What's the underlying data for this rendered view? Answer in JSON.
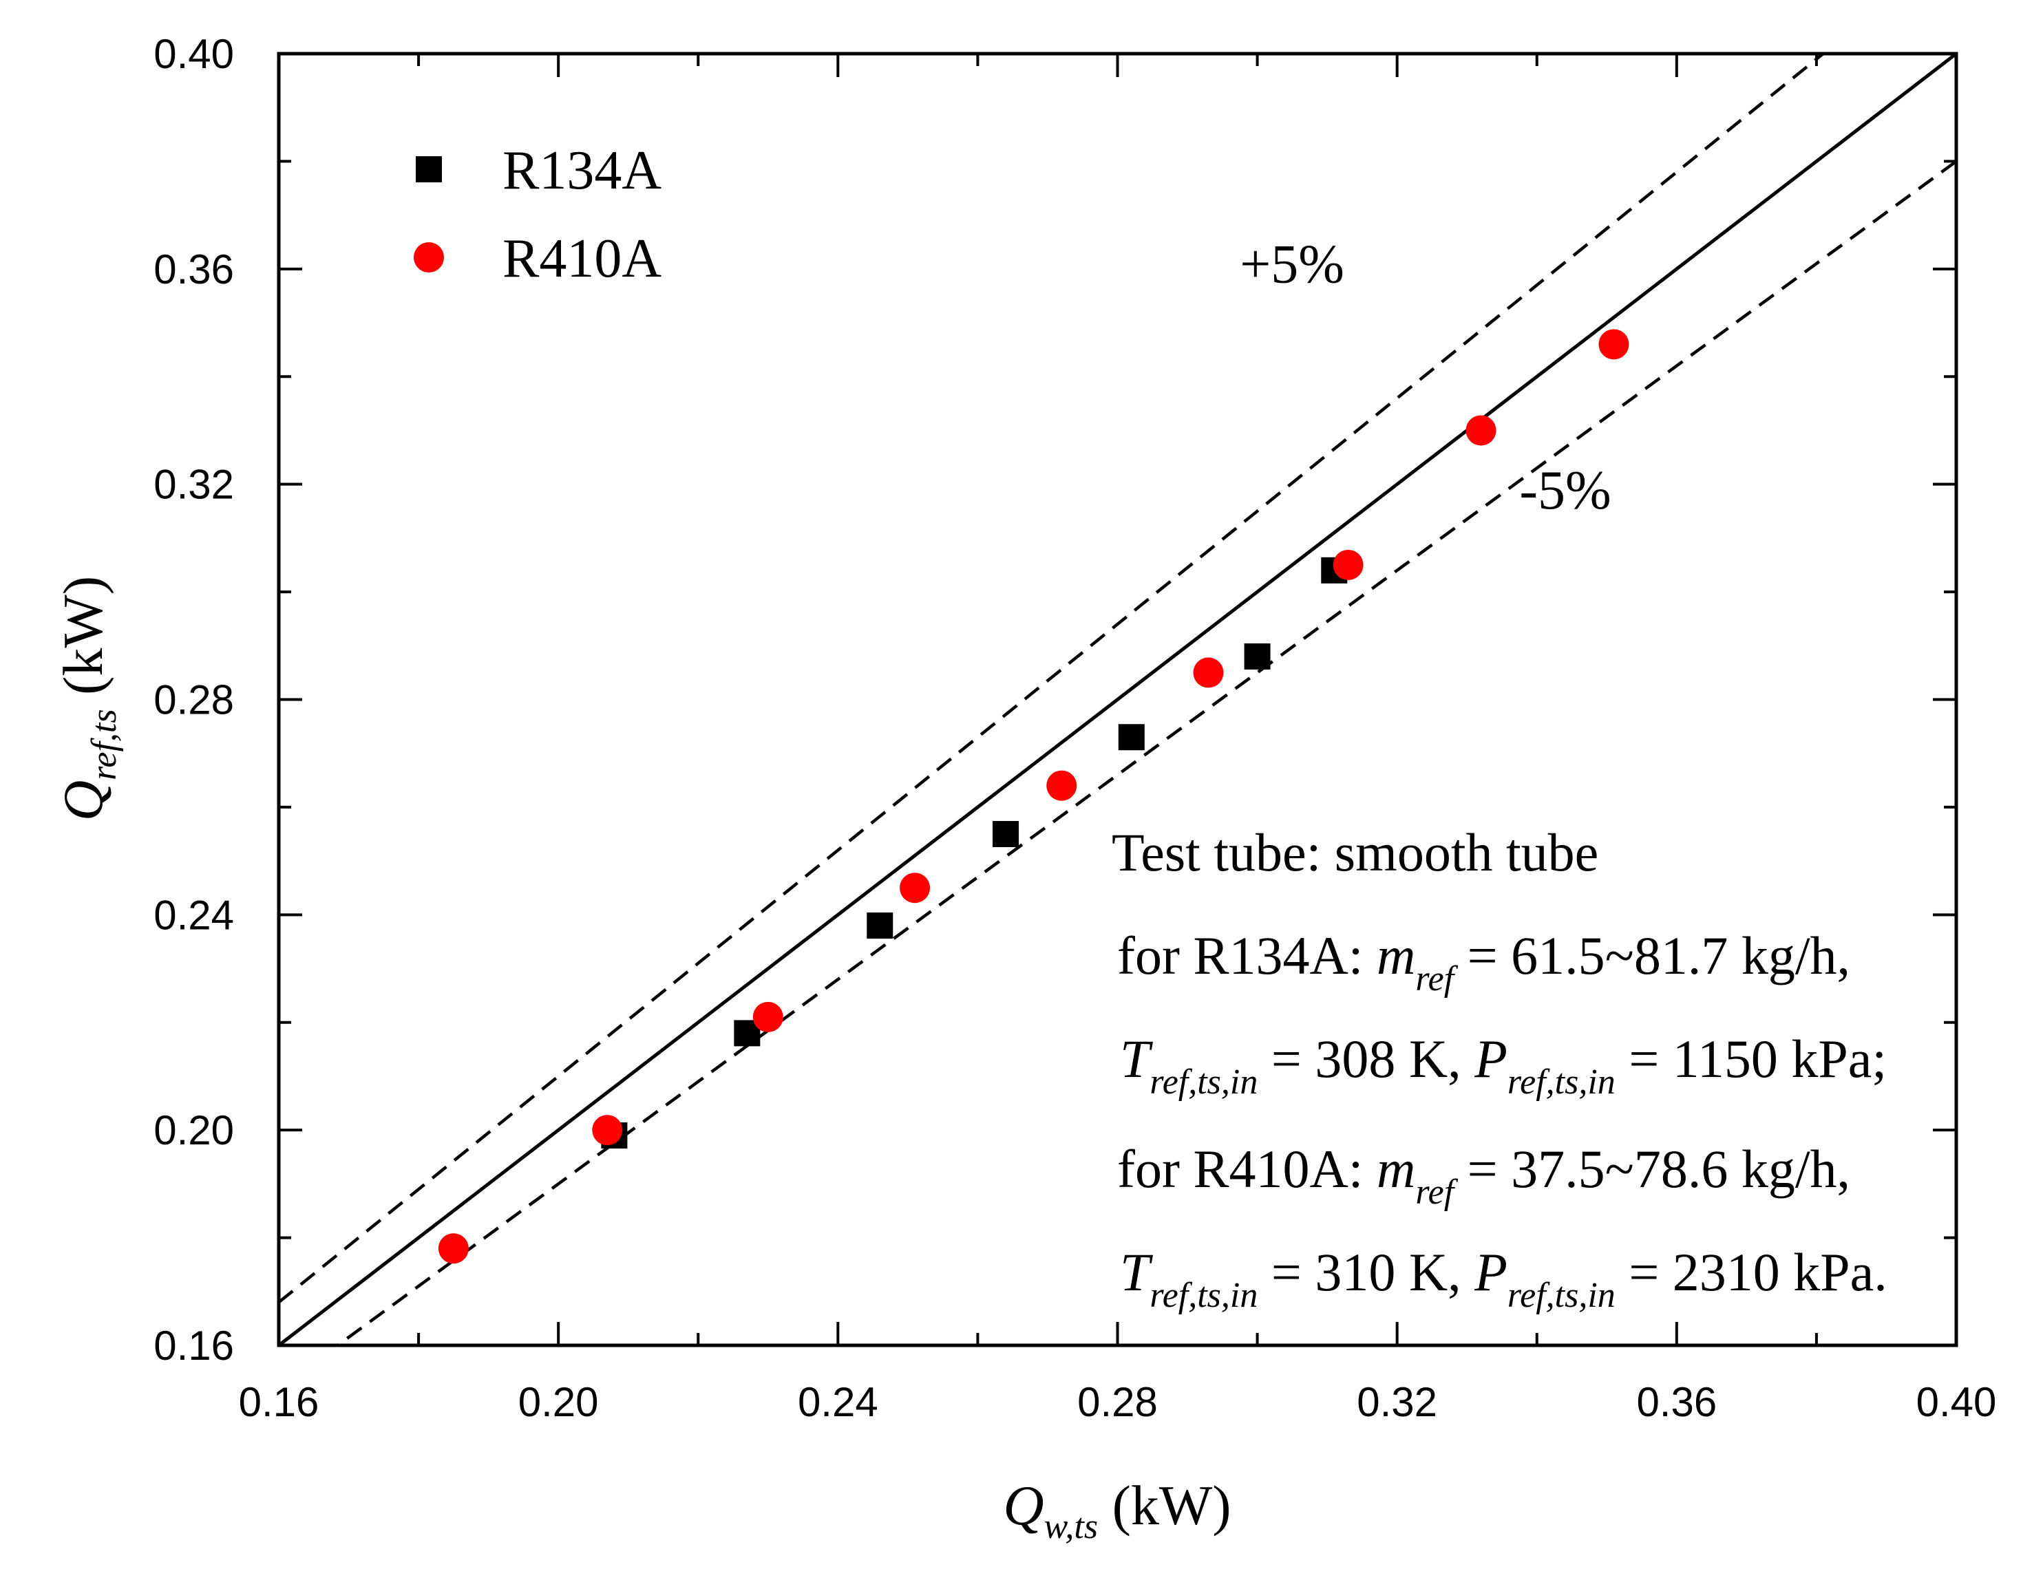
{
  "chart_data": {
    "type": "scatter",
    "title": "",
    "xlabel": {
      "symbol": "Q",
      "subscript": "w,ts",
      "unit": "(kW)"
    },
    "ylabel": {
      "symbol": "Q",
      "subscript": "ref,ts",
      "unit": "(kW)"
    },
    "xlim": [
      0.16,
      0.4
    ],
    "ylim": [
      0.16,
      0.4
    ],
    "x_ticks": [
      0.16,
      0.2,
      0.24,
      0.28,
      0.32,
      0.36,
      0.4
    ],
    "y_ticks": [
      0.16,
      0.2,
      0.24,
      0.28,
      0.32,
      0.36,
      0.4
    ],
    "x_tick_labels": [
      "0.16",
      "0.20",
      "0.24",
      "0.28",
      "0.32",
      "0.36",
      "0.40"
    ],
    "y_tick_labels": [
      "0.16",
      "0.20",
      "0.24",
      "0.28",
      "0.32",
      "0.36",
      "0.40"
    ],
    "minor_ticks": true,
    "grid": false,
    "legend_position": "top-left",
    "series": [
      {
        "name": "R134A",
        "marker": "square",
        "color": "#000000",
        "points": [
          {
            "x": 0.208,
            "y": 0.199
          },
          {
            "x": 0.227,
            "y": 0.218
          },
          {
            "x": 0.246,
            "y": 0.238
          },
          {
            "x": 0.264,
            "y": 0.255
          },
          {
            "x": 0.282,
            "y": 0.273
          },
          {
            "x": 0.3,
            "y": 0.288
          },
          {
            "x": 0.311,
            "y": 0.304
          }
        ]
      },
      {
        "name": "R410A",
        "marker": "circle",
        "color": "#ff0000",
        "points": [
          {
            "x": 0.185,
            "y": 0.178
          },
          {
            "x": 0.207,
            "y": 0.2
          },
          {
            "x": 0.23,
            "y": 0.221
          },
          {
            "x": 0.251,
            "y": 0.245
          },
          {
            "x": 0.272,
            "y": 0.264
          },
          {
            "x": 0.293,
            "y": 0.285
          },
          {
            "x": 0.313,
            "y": 0.305
          },
          {
            "x": 0.332,
            "y": 0.33
          },
          {
            "x": 0.351,
            "y": 0.346
          }
        ]
      }
    ],
    "reference_lines": [
      {
        "name": "identity",
        "slope": 1.0,
        "style": "solid",
        "label": ""
      },
      {
        "name": "plus-5",
        "slope": 1.05,
        "style": "dashed",
        "label": "+5%",
        "label_at": {
          "x": 0.2975,
          "y": 0.3575
        }
      },
      {
        "name": "minus-5",
        "slope": 0.95,
        "style": "dashed",
        "label": "-5%",
        "label_at": {
          "x": 0.3375,
          "y": 0.3155
        }
      }
    ],
    "annotation": {
      "title": "Test tube: smooth tube",
      "lines": [
        [
          {
            "t": "for R134A: ",
            "s": "n"
          },
          {
            "t": "m",
            "s": "i"
          },
          {
            "t": "ref",
            "s": "sub"
          },
          {
            "t": " = 61.5~81.7 kg/h,",
            "s": "n"
          }
        ],
        [
          {
            "t": "T",
            "s": "i"
          },
          {
            "t": "ref,ts,in",
            "s": "sub"
          },
          {
            "t": " = 308 K, ",
            "s": "n"
          },
          {
            "t": "P",
            "s": "i"
          },
          {
            "t": "ref,ts,in",
            "s": "sub"
          },
          {
            "t": " = 1150 kPa;",
            "s": "n"
          }
        ],
        [
          {
            "t": "for R410A: ",
            "s": "n"
          },
          {
            "t": "m",
            "s": "i"
          },
          {
            "t": "ref",
            "s": "sub"
          },
          {
            "t": " = 37.5~78.6 kg/h,",
            "s": "n"
          }
        ],
        [
          {
            "t": "T",
            "s": "i"
          },
          {
            "t": "ref,ts,in",
            "s": "sub"
          },
          {
            "t": " = 310 K, ",
            "s": "n"
          },
          {
            "t": "P",
            "s": "i"
          },
          {
            "t": "ref,ts,in",
            "s": "sub"
          },
          {
            "t": " = 2310 kPa.",
            "s": "n"
          }
        ]
      ]
    }
  }
}
